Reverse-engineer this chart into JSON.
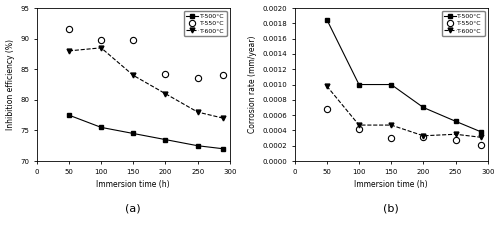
{
  "time": [
    50,
    100,
    150,
    200,
    250,
    290
  ],
  "inh_500": [
    77.5,
    75.5,
    74.5,
    73.5,
    72.5,
    72.0
  ],
  "inh_550": [
    91.5,
    89.8,
    89.8,
    84.2,
    83.5,
    84.0
  ],
  "inh_600": [
    88.0,
    88.5,
    84.0,
    81.0,
    78.0,
    77.0
  ],
  "corr_500": [
    0.00185,
    0.001,
    0.001,
    0.0007,
    0.00052,
    0.00038
  ],
  "corr_550": [
    0.00068,
    0.00042,
    0.0003,
    0.00032,
    0.00028,
    0.00021
  ],
  "corr_600": [
    0.00098,
    0.00047,
    0.00047,
    0.00033,
    0.00035,
    0.00031
  ],
  "ylim_inh": [
    70,
    95
  ],
  "yticks_inh": [
    70,
    75,
    80,
    85,
    90,
    95
  ],
  "ylim_corr": [
    0.0,
    0.002
  ],
  "yticks_corr": [
    0.0,
    0.0002,
    0.0004,
    0.0006,
    0.0008,
    0.001,
    0.0012,
    0.0014,
    0.0016,
    0.0018,
    0.002
  ],
  "xlabel": "Immersion time (h)",
  "ylabel_inh": "Inhibition efficiency (%)",
  "ylabel_corr": "Corrosion rate (mm/year)",
  "label_500": "T-500°C",
  "label_550": "T-550°C",
  "label_600": "T-600°C",
  "sub_a": "(a)",
  "sub_b": "(b)",
  "xlim": [
    0,
    300
  ],
  "xticks": [
    0,
    50,
    100,
    150,
    200,
    250,
    300
  ]
}
